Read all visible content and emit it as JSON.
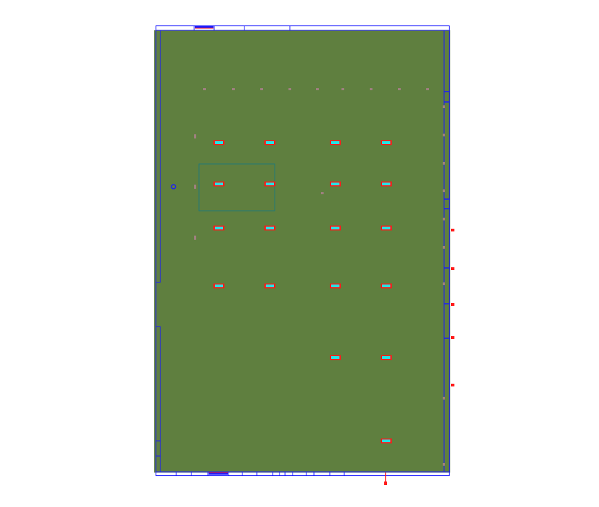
{
  "drawing": {
    "colors": {
      "floor": "#5f7f3f",
      "wall": "#1a1aff",
      "fixture_fill": "#22e6e6",
      "fixture_border": "#ff1a1a",
      "zone_outline": "#1f7a7a",
      "marker": "#ff1a1a",
      "sensor": "#a08080"
    },
    "icons": {
      "fixture": "light-fixture-icon",
      "marker": "red-tag-icon",
      "circle": "circle-node-icon"
    }
  }
}
